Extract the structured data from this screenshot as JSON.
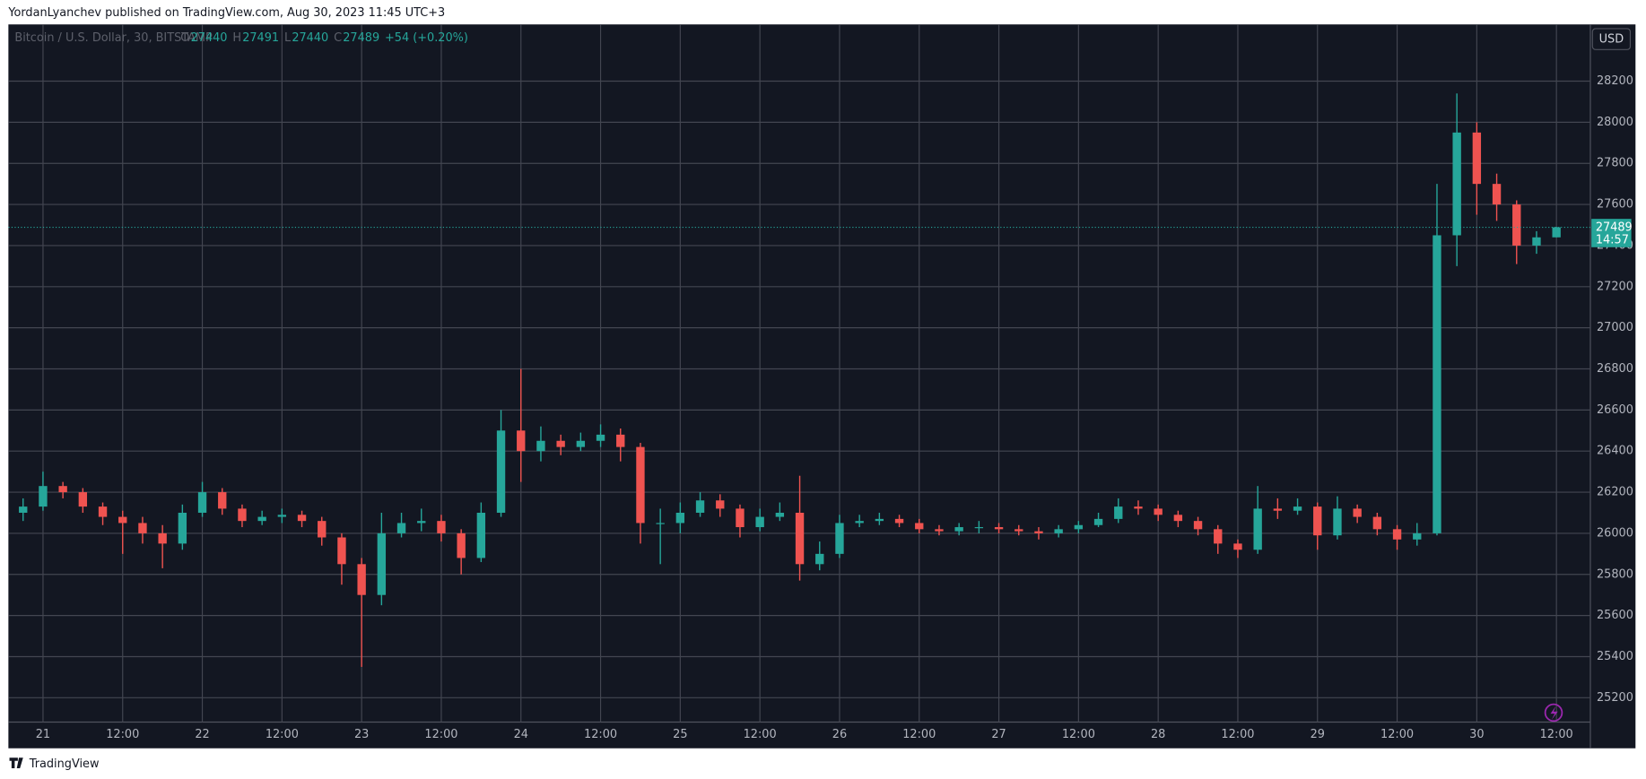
{
  "header": {
    "publisher": "YordanLyanchev published on TradingView.com, Aug 30, 2023 11:45 UTC+3",
    "brand": "TradingView"
  },
  "chart_data": {
    "type": "candlestick",
    "symbol": "Bitcoin / U.S. Dollar, 30, BITSTAMP",
    "legend_labels": [
      "O",
      "H",
      "L",
      "C"
    ],
    "change": "+54 (+0.20%)",
    "currency": "USD",
    "countdown": "14:57",
    "last_price": 27489,
    "up_color": "#26a69a",
    "down_color": "#ef5350",
    "grid": true,
    "categories": [
      null,
      "21",
      null,
      null,
      null,
      "12:00",
      null,
      null,
      null,
      "22",
      null,
      null,
      null,
      "12:00",
      null,
      null,
      null,
      "23",
      null,
      null,
      null,
      "12:00",
      null,
      null,
      null,
      "24",
      null,
      null,
      null,
      "12:00",
      null,
      null,
      null,
      "25",
      null,
      null,
      null,
      "12:00",
      null,
      null,
      null,
      "26",
      null,
      null,
      null,
      "12:00",
      null,
      null,
      null,
      "27",
      null,
      null,
      null,
      "12:00",
      null,
      null,
      null,
      "28",
      null,
      null,
      null,
      "12:00",
      null,
      null,
      null,
      "29",
      null,
      null,
      null,
      "12:00",
      null,
      null,
      null,
      "30",
      null,
      null,
      null,
      "12:00"
    ],
    "open": [
      26100,
      26130,
      26230,
      26200,
      26130,
      26080,
      26050,
      26000,
      25950,
      26100,
      26200,
      26120,
      26060,
      26080,
      26090,
      26060,
      25980,
      25850,
      25700,
      26000,
      26050,
      26060,
      26000,
      25880,
      26100,
      26500,
      26400,
      26450,
      26420,
      26450,
      26480,
      26420,
      26050,
      26050,
      26100,
      26160,
      26120,
      26030,
      26080,
      26100,
      25850,
      25900,
      26050,
      26060,
      26070,
      26050,
      26020,
      26010,
      26030,
      26030,
      26020,
      26010,
      26000,
      26020,
      26040,
      26070,
      26130,
      26120,
      26090,
      26060,
      26020,
      25950,
      25920,
      26120,
      26110,
      26130,
      25990,
      26120,
      26080,
      26020,
      25970,
      26000,
      27450,
      27950,
      27700,
      27600,
      27400,
      27440
    ],
    "high": [
      26170,
      26300,
      26250,
      26220,
      26150,
      26110,
      26080,
      26040,
      26140,
      26250,
      26220,
      26140,
      26110,
      26120,
      26110,
      26080,
      26000,
      25880,
      26100,
      26100,
      26120,
      26090,
      26020,
      26150,
      26600,
      26800,
      26520,
      26480,
      26490,
      26530,
      26510,
      26440,
      26120,
      26150,
      26200,
      26190,
      26140,
      26120,
      26150,
      26280,
      25960,
      26090,
      26090,
      26100,
      26090,
      26070,
      26040,
      26050,
      26060,
      26050,
      26040,
      26030,
      26040,
      26060,
      26100,
      26170,
      26160,
      26140,
      26110,
      26080,
      26040,
      25970,
      26230,
      26170,
      26170,
      26150,
      26180,
      26140,
      26100,
      26040,
      26050,
      27700,
      28140,
      28000,
      27750,
      27620,
      27470,
      27491
    ],
    "low": [
      26060,
      26110,
      26170,
      26100,
      26040,
      25900,
      25950,
      25830,
      25920,
      26080,
      26090,
      26030,
      26040,
      26050,
      26030,
      25940,
      25750,
      25350,
      25650,
      25980,
      26010,
      25960,
      25800,
      25860,
      26080,
      26250,
      26350,
      26380,
      26400,
      26420,
      26350,
      25950,
      25850,
      26000,
      26080,
      26080,
      25980,
      26010,
      26060,
      25770,
      25820,
      25880,
      26030,
      26040,
      26030,
      26000,
      25990,
      25990,
      26000,
      26000,
      25990,
      25970,
      25980,
      26000,
      26030,
      26050,
      26090,
      26060,
      26030,
      25990,
      25900,
      25880,
      25900,
      26070,
      26090,
      25920,
      25970,
      26050,
      25990,
      25920,
      25940,
      25990,
      27300,
      27550,
      27520,
      27310,
      27360,
      27440
    ],
    "close": [
      26130,
      26230,
      26200,
      26130,
      26080,
      26050,
      26000,
      25950,
      26100,
      26200,
      26120,
      26060,
      26080,
      26090,
      26060,
      25980,
      25850,
      25700,
      26000,
      26050,
      26060,
      26000,
      25880,
      26100,
      26500,
      26400,
      26450,
      26420,
      26450,
      26480,
      26420,
      26050,
      26050,
      26100,
      26160,
      26120,
      26030,
      26080,
      26100,
      25850,
      25900,
      26050,
      26060,
      26070,
      26050,
      26020,
      26010,
      26030,
      26030,
      26020,
      26010,
      26000,
      26020,
      26040,
      26070,
      26130,
      26120,
      26090,
      26060,
      26020,
      25950,
      25920,
      26120,
      26110,
      26130,
      25990,
      26120,
      26080,
      26020,
      25970,
      26000,
      27450,
      27950,
      27700,
      27600,
      27400,
      27440,
      27489
    ],
    "ylim": [
      24954,
      28476
    ],
    "yticks": [
      25200,
      25400,
      25600,
      25800,
      26000,
      26200,
      26400,
      26600,
      26800,
      27000,
      27200,
      27400,
      27600,
      27800,
      28000,
      28200
    ]
  }
}
